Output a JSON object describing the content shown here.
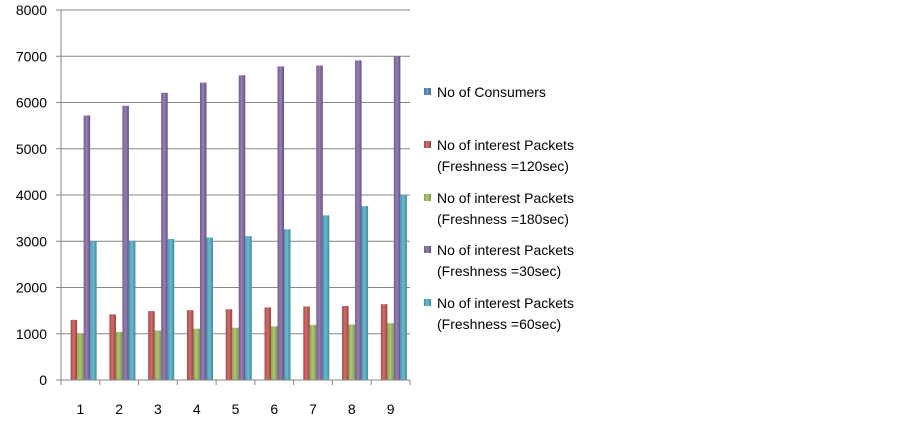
{
  "chart_data": {
    "type": "bar",
    "title": "",
    "xlabel": "",
    "ylabel": "",
    "categories": [
      "1",
      "2",
      "3",
      "4",
      "5",
      "6",
      "7",
      "8",
      "9"
    ],
    "ylim": [
      0,
      8000
    ],
    "yticks": [
      "0",
      "1000",
      "2000",
      "3000",
      "4000",
      "5000",
      "6000",
      "7000",
      "8000"
    ],
    "grid": true,
    "legend_position": "right",
    "series": [
      {
        "name": "No of Consumers",
        "color": "#4F81BD",
        "values": [
          1,
          2,
          3,
          4,
          5,
          6,
          7,
          8,
          9
        ]
      },
      {
        "name": "No of interest Packets (Freshness =120sec)",
        "legend_lines": [
          "No of interest Packets",
          "(Freshness =120sec)"
        ],
        "color": "#C0504D",
        "values": [
          1300,
          1420,
          1490,
          1510,
          1530,
          1570,
          1590,
          1600,
          1640
        ]
      },
      {
        "name": "No of interest Packets (Freshness =180sec)",
        "legend_lines": [
          "No of interest Packets",
          "(Freshness =180sec)"
        ],
        "color": "#9BBB59",
        "values": [
          1000,
          1040,
          1070,
          1110,
          1130,
          1160,
          1190,
          1200,
          1230
        ]
      },
      {
        "name": "No of interest Packets (Freshness =30sec)",
        "legend_lines": [
          "No of interest Packets",
          "(Freshness =30sec)"
        ],
        "color": "#8064A2",
        "values": [
          5720,
          5930,
          6210,
          6430,
          6590,
          6780,
          6800,
          6910,
          7000
        ]
      },
      {
        "name": "No of interest Packets (Freshness =60sec)",
        "legend_lines": [
          "No of interest Packets",
          "(Freshness =60sec)"
        ],
        "color": "#4BACC6",
        "values": [
          3000,
          3010,
          3050,
          3080,
          3110,
          3260,
          3560,
          3760,
          4000
        ]
      }
    ]
  }
}
